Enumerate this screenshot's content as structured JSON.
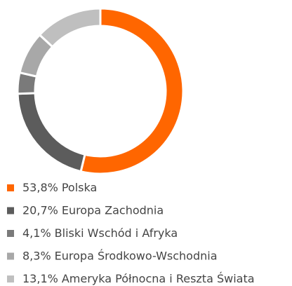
{
  "chart_data": {
    "type": "donut",
    "categories": [
      "Polska",
      "Europa Zachodnia",
      "Bliski Wschód i Afryka",
      "Europa Środkowo-Wschodnia",
      "Ameryka Północna i Reszta Świata"
    ],
    "values": [
      53.8,
      20.7,
      4.1,
      8.3,
      13.1
    ],
    "value_labels": [
      "53,8%",
      "20,7%",
      "4,1%",
      "8,3%",
      "13,1%"
    ],
    "colors": [
      "#ff6600",
      "#5c5c5c",
      "#7a7a7a",
      "#a8a8a8",
      "#bfbfbf"
    ],
    "legend": "bottom"
  }
}
